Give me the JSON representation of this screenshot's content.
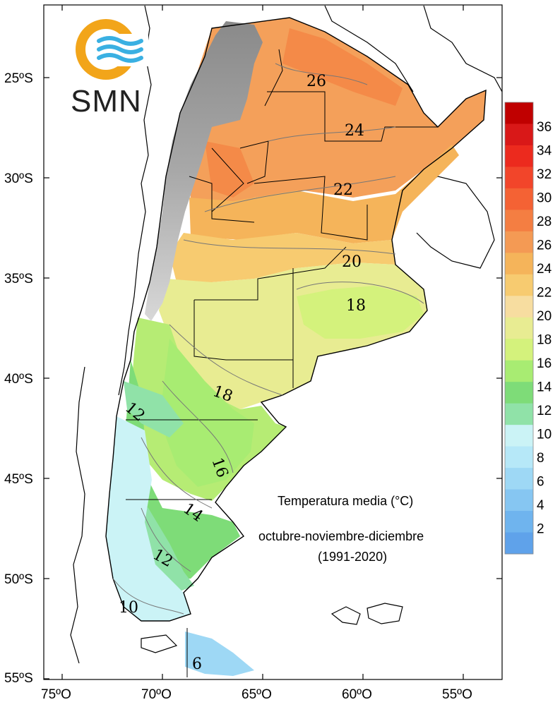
{
  "logo": {
    "text": "SMN",
    "ring_color": "#F2A51A",
    "wave_color": "#3AB0E2",
    "icon": "smn-logo-icon"
  },
  "title": {
    "line1": "Temperatura media (°C)",
    "line2": "octubre-noviembre-diciembre",
    "line3": "(1991-2020)"
  },
  "axes": {
    "latitude_labels": [
      "25ºS",
      "30ºS",
      "35ºS",
      "40ºS",
      "45ºS",
      "50ºS",
      "55ºS"
    ],
    "longitude_labels": [
      "75ºO",
      "70ºO",
      "65ºO",
      "60ºO",
      "55ºO"
    ]
  },
  "legend": {
    "labels": [
      "36",
      "34",
      "32",
      "30",
      "28",
      "26",
      "24",
      "22",
      "20",
      "18",
      "16",
      "14",
      "12",
      "10",
      "8",
      "6",
      "4",
      "2"
    ],
    "colors": [
      "#C00000",
      "#D91818",
      "#EC2A1E",
      "#F2452A",
      "#F46234",
      "#F47E42",
      "#F49A54",
      "#F5B45A",
      "#F7CB70",
      "#F7DDA0",
      "#E8EC92",
      "#D4F27C",
      "#A8EC72",
      "#7EDC78",
      "#90E2A8",
      "#CBF3F6",
      "#B6E8F8",
      "#9ED8F5",
      "#86C6F2",
      "#6FB4EE",
      "#5FA2EA"
    ]
  },
  "isolines": [
    "26",
    "24",
    "22",
    "20",
    "18",
    "18",
    "16",
    "14",
    "12",
    "12",
    "10",
    "6"
  ]
}
